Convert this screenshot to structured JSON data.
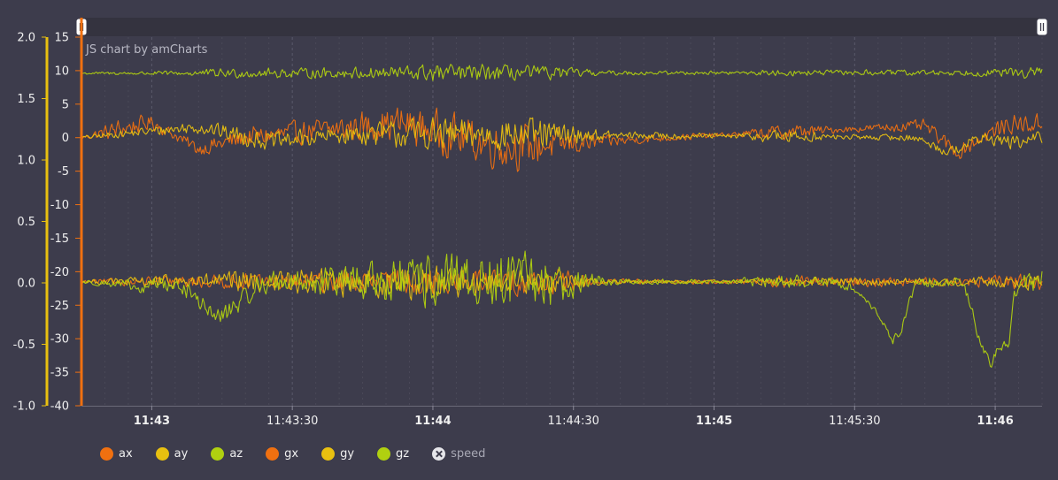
{
  "credit": "JS chart by amCharts",
  "colors": {
    "background": "#3d3c4c",
    "orange": "#f07010",
    "yellow": "#e8c010",
    "lime": "#b0d010",
    "scrollbar": "#34333f"
  },
  "legend": [
    {
      "name": "ax",
      "color": "#f07010",
      "hidden": false
    },
    {
      "name": "ay",
      "color": "#e8c010",
      "hidden": false
    },
    {
      "name": "az",
      "color": "#b0d010",
      "hidden": false
    },
    {
      "name": "gx",
      "color": "#f07010",
      "hidden": false
    },
    {
      "name": "gy",
      "color": "#e8c010",
      "hidden": false
    },
    {
      "name": "gz",
      "color": "#b0d010",
      "hidden": false
    },
    {
      "name": "speed",
      "color": "#e6e6ea",
      "hidden": true
    }
  ],
  "chart_data": {
    "type": "line",
    "x_range": [
      "11:42:45",
      "11:46:10"
    ],
    "x_ticks": [
      {
        "label": "11:43",
        "time": "11:43:00",
        "bold": true
      },
      {
        "label": "11:43:30",
        "time": "11:43:30",
        "bold": false
      },
      {
        "label": "11:44",
        "time": "11:44:00",
        "bold": true
      },
      {
        "label": "11:44:30",
        "time": "11:44:30",
        "bold": false
      },
      {
        "label": "11:45",
        "time": "11:45:00",
        "bold": true
      },
      {
        "label": "11:45:30",
        "time": "11:45:30",
        "bold": false
      },
      {
        "label": "11:46",
        "time": "11:46:00",
        "bold": true
      }
    ],
    "y_axes": [
      {
        "id": "speed-axis",
        "color": "#e8c010",
        "range": [
          -1.0,
          2.0
        ],
        "ticks": [
          "2.0",
          "1.5",
          "1.0",
          "0.5",
          "0.0",
          "-0.5",
          "-1.0"
        ]
      },
      {
        "id": "sensor-axis",
        "color": "#f07010",
        "range": [
          -40,
          15
        ],
        "ticks": [
          "15",
          "10",
          "5",
          "0",
          "-5",
          "-10",
          "-15",
          "-20",
          "-25",
          "-30",
          "-35",
          "-40"
        ]
      }
    ],
    "series": [
      {
        "name": "ax",
        "color": "#f07010",
        "baseline": 0,
        "noise": [
          [
            0,
            0.3
          ],
          [
            8,
            1.8
          ],
          [
            20,
            0.9
          ],
          [
            33,
            1.8
          ],
          [
            55,
            2.2
          ],
          [
            78,
            3.8
          ],
          [
            95,
            3.8
          ],
          [
            112,
            1.0
          ],
          [
            138,
            0.4
          ],
          [
            150,
            1.5
          ],
          [
            162,
            0.5
          ],
          [
            185,
            1.2
          ],
          [
            205,
            1.8
          ]
        ],
        "drift": [
          [
            0,
            0
          ],
          [
            15,
            2.3
          ],
          [
            25,
            -1.7
          ],
          [
            35,
            0
          ],
          [
            68,
            2.2
          ],
          [
            90,
            -1.5
          ],
          [
            125,
            0
          ],
          [
            180,
            1.8
          ],
          [
            187,
            -2.3
          ],
          [
            192,
            0
          ],
          [
            198,
            2
          ],
          [
            205,
            2
          ]
        ]
      },
      {
        "name": "ay",
        "color": "#e8c010",
        "baseline": 0,
        "noise": [
          [
            0,
            0.3
          ],
          [
            20,
            1.0
          ],
          [
            35,
            1.6
          ],
          [
            55,
            1.5
          ],
          [
            72,
            2.8
          ],
          [
            98,
            2.8
          ],
          [
            112,
            0.8
          ],
          [
            138,
            0.4
          ],
          [
            150,
            1.3
          ],
          [
            162,
            0.4
          ],
          [
            185,
            0.8
          ],
          [
            205,
            1.3
          ]
        ],
        "drift": [
          [
            0,
            0
          ],
          [
            25,
            1.6
          ],
          [
            40,
            -0.6
          ],
          [
            60,
            0.6
          ],
          [
            178,
            0
          ],
          [
            185,
            -2.2
          ],
          [
            192,
            0
          ],
          [
            200,
            -0.8
          ],
          [
            205,
            0
          ]
        ]
      },
      {
        "name": "az",
        "color": "#b0d010",
        "baseline": 9.8,
        "noise": [
          [
            0,
            0.2
          ],
          [
            20,
            0.4
          ],
          [
            30,
            0.8
          ],
          [
            55,
            0.9
          ],
          [
            75,
            1.6
          ],
          [
            100,
            1.2
          ],
          [
            112,
            0.4
          ],
          [
            138,
            0.3
          ],
          [
            150,
            0.5
          ],
          [
            188,
            0.5
          ],
          [
            198,
            0.8
          ],
          [
            205,
            1.1
          ]
        ],
        "drift": [
          [
            0,
            -0.2
          ],
          [
            205,
            -0.1
          ]
        ]
      },
      {
        "name": "gx",
        "color": "#f07010",
        "baseline": -21.5,
        "noise": [
          [
            0,
            0.3
          ],
          [
            10,
            0.7
          ],
          [
            30,
            1.2
          ],
          [
            60,
            2.0
          ],
          [
            100,
            2.4
          ],
          [
            112,
            0.5
          ],
          [
            138,
            0.4
          ],
          [
            150,
            1.0
          ],
          [
            185,
            0.7
          ],
          [
            205,
            1.5
          ]
        ],
        "drift": [
          [
            0,
            0
          ],
          [
            205,
            0
          ]
        ]
      },
      {
        "name": "gy",
        "color": "#e8c010",
        "baseline": -21.5,
        "noise": [
          [
            0,
            0.3
          ],
          [
            10,
            0.8
          ],
          [
            30,
            1.6
          ],
          [
            70,
            3.0
          ],
          [
            100,
            2.0
          ],
          [
            112,
            0.4
          ],
          [
            138,
            0.3
          ],
          [
            150,
            0.8
          ],
          [
            185,
            0.6
          ],
          [
            205,
            1.4
          ]
        ],
        "drift": [
          [
            0,
            0
          ],
          [
            205,
            0
          ]
        ]
      },
      {
        "name": "gz",
        "color": "#b0d010",
        "baseline": -21.5,
        "noise": [
          [
            0,
            0.3
          ],
          [
            12,
            0.9
          ],
          [
            25,
            1.4
          ],
          [
            45,
            2.0
          ],
          [
            62,
            3.5
          ],
          [
            80,
            5.0
          ],
          [
            95,
            5.5
          ],
          [
            103,
            4.0
          ],
          [
            112,
            0.6
          ],
          [
            138,
            0.4
          ],
          [
            150,
            1.2
          ],
          [
            170,
            0.5
          ],
          [
            180,
            1.0
          ],
          [
            190,
            0.8
          ],
          [
            200,
            1.4
          ],
          [
            205,
            2.2
          ]
        ],
        "drift": [
          [
            0,
            0
          ],
          [
            10,
            -0.5
          ],
          [
            13,
            -1.5
          ],
          [
            15,
            0
          ],
          [
            22,
            -1
          ],
          [
            26,
            -3.5
          ],
          [
            29,
            -5.5
          ],
          [
            31,
            -4.5
          ],
          [
            34,
            -3
          ],
          [
            37,
            -1
          ],
          [
            40,
            0
          ],
          [
            160,
            0
          ],
          [
            165,
            -1
          ],
          [
            168,
            -3
          ],
          [
            171,
            -6
          ],
          [
            173,
            -9
          ],
          [
            175,
            -7
          ],
          [
            178,
            0
          ],
          [
            188,
            0
          ],
          [
            190,
            -4
          ],
          [
            192,
            -10
          ],
          [
            194,
            -12
          ],
          [
            196,
            -10
          ],
          [
            198,
            -9
          ],
          [
            199,
            -2
          ],
          [
            201,
            0
          ],
          [
            205,
            0
          ]
        ]
      }
    ]
  }
}
